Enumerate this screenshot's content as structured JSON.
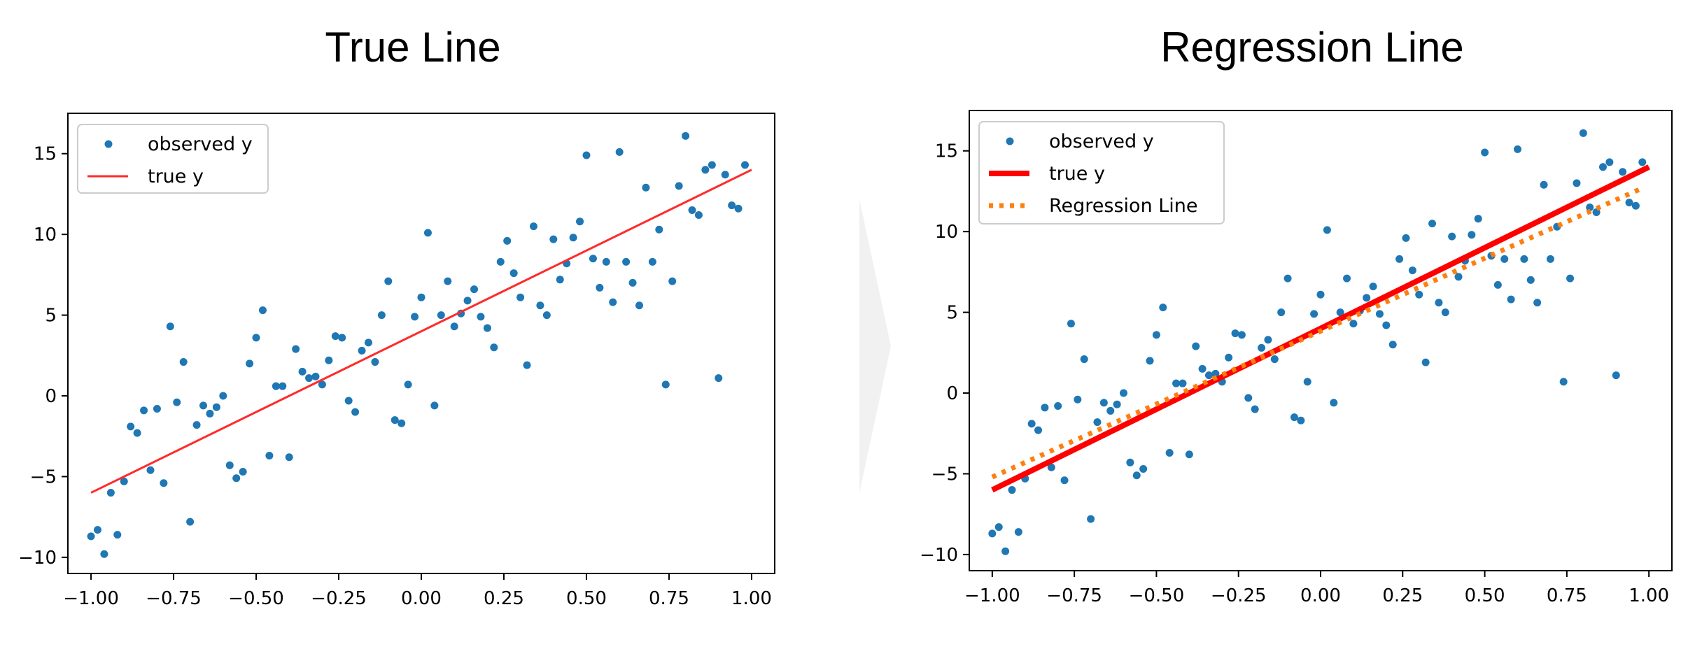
{
  "chart_data": [
    {
      "type": "scatter",
      "title": "True Line",
      "xlabel": "",
      "ylabel": "",
      "xlim": [
        -1.07,
        1.07
      ],
      "ylim": [
        -11,
        17.5
      ],
      "x_ticks": [
        -1.0,
        -0.75,
        -0.5,
        -0.25,
        0.0,
        0.25,
        0.5,
        0.75,
        1.0
      ],
      "x_tick_labels": [
        "−1.00",
        "−0.75",
        "−0.50",
        "−0.25",
        "0.00",
        "0.25",
        "0.50",
        "0.75",
        "1.00"
      ],
      "y_ticks": [
        -10,
        -5,
        0,
        5,
        10,
        15
      ],
      "y_tick_labels": [
        "−10",
        "−5",
        "0",
        "5",
        "10",
        "15"
      ],
      "grid": false,
      "legend_position": "top-left",
      "colors": {
        "observed": "#1f77b4",
        "true_line": "#ff2b2b"
      },
      "series": [
        {
          "name": "observed y",
          "kind": "points"
        },
        {
          "name": "true y",
          "kind": "line",
          "x": [
            -1.0,
            1.0
          ],
          "y": [
            -6.0,
            14.0
          ]
        }
      ]
    },
    {
      "type": "scatter",
      "title": "Regression Line",
      "xlabel": "",
      "ylabel": "",
      "xlim": [
        -1.07,
        1.07
      ],
      "ylim": [
        -11,
        17.5
      ],
      "x_ticks": [
        -1.0,
        -0.75,
        -0.5,
        -0.25,
        0.0,
        0.25,
        0.5,
        0.75,
        1.0
      ],
      "x_tick_labels": [
        "−1.00",
        "−0.75",
        "−0.50",
        "−0.25",
        "0.00",
        "0.25",
        "0.50",
        "0.75",
        "1.00"
      ],
      "y_ticks": [
        -10,
        -5,
        0,
        5,
        10,
        15
      ],
      "y_tick_labels": [
        "−10",
        "−5",
        "0",
        "5",
        "10",
        "15"
      ],
      "grid": false,
      "legend_position": "top-left",
      "colors": {
        "observed": "#1f77b4",
        "true_line": "#ff0000",
        "regression": "#ff7f0e"
      },
      "series": [
        {
          "name": "observed y",
          "kind": "points"
        },
        {
          "name": "true y",
          "kind": "line",
          "x": [
            -1.0,
            1.0
          ],
          "y": [
            -6.0,
            14.0
          ]
        },
        {
          "name": "Regression Line",
          "kind": "dotted-line",
          "x": [
            -1.0,
            0.97
          ],
          "y": [
            -5.2,
            12.6
          ]
        }
      ]
    }
  ],
  "observed_points": {
    "x": [
      -1.0,
      -0.98,
      -0.96,
      -0.94,
      -0.92,
      -0.9,
      -0.88,
      -0.86,
      -0.84,
      -0.82,
      -0.8,
      -0.78,
      -0.76,
      -0.74,
      -0.72,
      -0.7,
      -0.68,
      -0.66,
      -0.64,
      -0.62,
      -0.6,
      -0.58,
      -0.56,
      -0.54,
      -0.52,
      -0.5,
      -0.48,
      -0.46,
      -0.44,
      -0.42,
      -0.4,
      -0.38,
      -0.36,
      -0.34,
      -0.32,
      -0.3,
      -0.28,
      -0.26,
      -0.24,
      -0.22,
      -0.2,
      -0.18,
      -0.16,
      -0.14,
      -0.12,
      -0.1,
      -0.08,
      -0.06,
      -0.04,
      -0.02,
      0.0,
      0.02,
      0.04,
      0.06,
      0.08,
      0.1,
      0.12,
      0.14,
      0.16,
      0.18,
      0.2,
      0.22,
      0.24,
      0.26,
      0.28,
      0.3,
      0.32,
      0.34,
      0.36,
      0.38,
      0.4,
      0.42,
      0.44,
      0.46,
      0.48,
      0.5,
      0.52,
      0.54,
      0.56,
      0.58,
      0.6,
      0.62,
      0.64,
      0.66,
      0.68,
      0.7,
      0.72,
      0.74,
      0.76,
      0.78,
      0.8,
      0.82,
      0.84,
      0.86,
      0.88,
      0.9,
      0.92,
      0.94,
      0.96,
      0.98
    ],
    "y": [
      -8.7,
      -8.3,
      -9.8,
      -6.0,
      -8.6,
      -5.3,
      -1.9,
      -2.3,
      -0.9,
      -4.6,
      -0.8,
      -5.4,
      4.3,
      -0.4,
      2.1,
      -7.8,
      -1.8,
      -0.6,
      -1.1,
      -0.7,
      0.0,
      -4.3,
      -5.1,
      -4.7,
      2.0,
      3.6,
      5.3,
      -3.7,
      0.6,
      0.6,
      -3.8,
      2.9,
      1.5,
      1.1,
      1.2,
      0.7,
      2.2,
      3.7,
      3.6,
      -0.3,
      -1.0,
      2.8,
      3.3,
      2.1,
      5.0,
      7.1,
      -1.5,
      -1.7,
      0.7,
      4.9,
      6.1,
      10.1,
      -0.6,
      5.0,
      7.1,
      4.3,
      5.1,
      5.9,
      6.6,
      4.9,
      4.2,
      3.0,
      8.3,
      9.6,
      7.6,
      6.1,
      1.9,
      10.5,
      5.6,
      5.0,
      9.7,
      7.2,
      8.2,
      9.8,
      10.8,
      14.9,
      8.5,
      6.7,
      8.3,
      5.8,
      15.1,
      8.3,
      7.0,
      5.6,
      12.9,
      8.3,
      10.3,
      0.7,
      7.1,
      13.0,
      16.1,
      11.5,
      11.2,
      14.0,
      14.3,
      1.1,
      13.7,
      11.8,
      11.6,
      14.3
    ]
  }
}
